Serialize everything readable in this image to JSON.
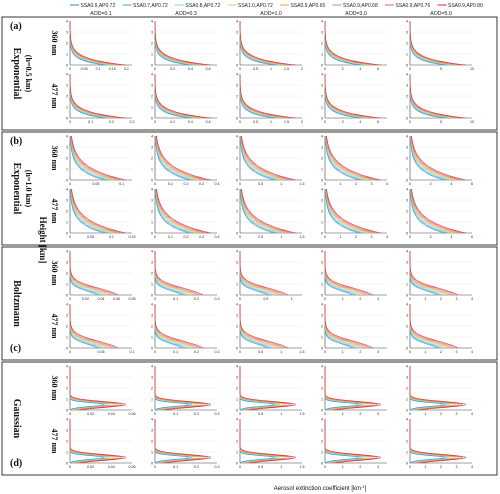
{
  "chart_data": {
    "type": "line",
    "legend": {
      "placement": "top",
      "entries": [
        {
          "label": "SSA0.9,AP0.72",
          "color": "#2f7fd6"
        },
        {
          "label": "SSA0.7,AP0.72",
          "color": "#33aadd"
        },
        {
          "label": "SSA0.8,AP0.72",
          "color": "#7ad0f0"
        },
        {
          "label": "SSA1.0,AP0.72",
          "color": "#b9dd6a"
        },
        {
          "label": "SSA0.9,AP0.65",
          "color": "#f2a03d"
        },
        {
          "label": "SSA0.9,AP0.68",
          "color": "#d98b5a"
        },
        {
          "label": "SSA0.9,AP0.76",
          "color": "#e25a7a"
        },
        {
          "label": "SSA0.9,AP0.80",
          "color": "#cf2a2a"
        }
      ]
    },
    "columns": [
      "AOD=0.1",
      "AOD=0.3",
      "AOD=1.0",
      "AOD=3.0",
      "AOD=5.0"
    ],
    "xlabel": "Aerosol extinction coefficient [km",
    "xlabel_sup": "-1",
    "xlabel_end": "]",
    "ylabel": "Height [km]",
    "ylim": [
      0,
      4
    ],
    "y_ticks": [
      "0",
      "1",
      "2",
      "3",
      "4"
    ],
    "groups": [
      {
        "letter": "(a)",
        "name": "Exponential",
        "subtitle": "(h=0.5 km)",
        "rows": [
          {
            "wavelength": "360 nm",
            "xticks": [
              [
                "0",
                "0.05",
                "0.1",
                "0.15",
                "0.2"
              ],
              [
                "0",
                "0.2",
                "0.4",
                "0.6"
              ],
              [
                "0",
                "0.5",
                "1",
                "1.5",
                "2"
              ],
              [
                "0",
                "2",
                "4",
                "6"
              ],
              [
                "0",
                "5",
                "10"
              ]
            ],
            "xmax": [
              0.22,
              0.7,
              2.0,
              7.0,
              10.0
            ]
          },
          {
            "wavelength": "477 nm",
            "xticks": [
              [
                "0",
                "0.1",
                "0.2",
                "0.3"
              ],
              [
                "0",
                "0.2",
                "0.4",
                "0.6"
              ],
              [
                "0",
                "0.5",
                "1",
                "1.5",
                "2"
              ],
              [
                "0",
                "2",
                "4",
                "6"
              ],
              [
                "0",
                "5",
                "10"
              ]
            ],
            "xmax": [
              0.3,
              0.7,
              2.0,
              7.0,
              10.0
            ]
          }
        ],
        "profile": "exp",
        "scale_height": 0.5
      },
      {
        "letter": "(b)",
        "name": "Exponential",
        "subtitle": "(h=1.0 km)",
        "rows": [
          {
            "wavelength": "360 nm",
            "xticks": [
              [
                "0",
                "0.05",
                "0.1"
              ],
              [
                "0",
                "0.1",
                "0.2",
                "0.3",
                "0.4"
              ],
              [
                "0",
                "0.5",
                "1",
                "1.5"
              ],
              [
                "0",
                "1",
                "2",
                "3",
                "4"
              ],
              [
                "0",
                "2",
                "4",
                "6"
              ]
            ],
            "xmax": [
              0.12,
              0.4,
              1.5,
              4.0,
              6.0
            ]
          },
          {
            "wavelength": "477 nm",
            "xticks": [
              [
                "0",
                "0.05",
                "0.1",
                "0.15"
              ],
              [
                "0",
                "0.1",
                "0.2",
                "0.3",
                "0.4"
              ],
              [
                "0",
                "0.5",
                "1",
                "1.5"
              ],
              [
                "0",
                "1",
                "2",
                "3",
                "4"
              ],
              [
                "0",
                "2",
                "4",
                "6"
              ]
            ],
            "xmax": [
              0.15,
              0.4,
              1.5,
              4.0,
              6.0
            ]
          }
        ],
        "profile": "exp",
        "scale_height": 1.0
      },
      {
        "letter": "(c)",
        "name": "Boltzmann",
        "subtitle": "",
        "rows": [
          {
            "wavelength": "360 nm",
            "xticks": [
              [
                "0",
                "0.02",
                "0.04",
                "0.06",
                "0.08"
              ],
              [
                "0",
                "0.1",
                "0.2",
                "0.3"
              ],
              [
                "0",
                "0.5",
                "1"
              ],
              [
                "0",
                "1",
                "2",
                "3"
              ],
              [
                "0",
                "1",
                "2",
                "3",
                "4"
              ]
            ],
            "xmax": [
              0.08,
              0.3,
              1.2,
              3.5,
              4.0
            ]
          },
          {
            "wavelength": "477 nm",
            "xticks": [
              [
                "0",
                "0.05",
                "0.1"
              ],
              [
                "0",
                "0.1",
                "0.2",
                "0.3"
              ],
              [
                "0",
                "0.5",
                "1",
                "1.5"
              ],
              [
                "0",
                "1",
                "2",
                "3"
              ],
              [
                "0",
                "1",
                "2",
                "3",
                "4"
              ]
            ],
            "xmax": [
              0.1,
              0.3,
              1.5,
              3.5,
              4.0
            ]
          }
        ],
        "profile": "boltzmann",
        "scale_height": 0.6
      },
      {
        "letter": "(d)",
        "name": "Gaussian",
        "subtitle": "",
        "rows": [
          {
            "wavelength": "360 nm",
            "xticks": [
              [
                "0",
                "0.02",
                "0.04",
                "0.06"
              ],
              [
                "0",
                "0.1",
                "0.2",
                "0.3"
              ],
              [
                "0",
                "0.5",
                "1",
                "1.5"
              ],
              [
                "0",
                "1",
                "2",
                "3"
              ],
              [
                "0",
                "1",
                "2",
                "3",
                "4"
              ]
            ],
            "xmax": [
              0.06,
              0.3,
              1.5,
              3.5,
              4.0
            ]
          },
          {
            "wavelength": "477 nm",
            "xticks": [
              [
                "0",
                "0.02",
                "0.04",
                "0.06"
              ],
              [
                "0",
                "0.1",
                "0.2",
                "0.3"
              ],
              [
                "0",
                "0.5",
                "1",
                "1.5"
              ],
              [
                "0",
                "1",
                "2",
                "3"
              ],
              [
                "0",
                "1",
                "2",
                "3",
                "4"
              ]
            ],
            "xmax": [
              0.06,
              0.3,
              1.5,
              3.5,
              4.0
            ]
          }
        ],
        "profile": "gaussian",
        "peak_height": 0.5
      }
    ]
  }
}
